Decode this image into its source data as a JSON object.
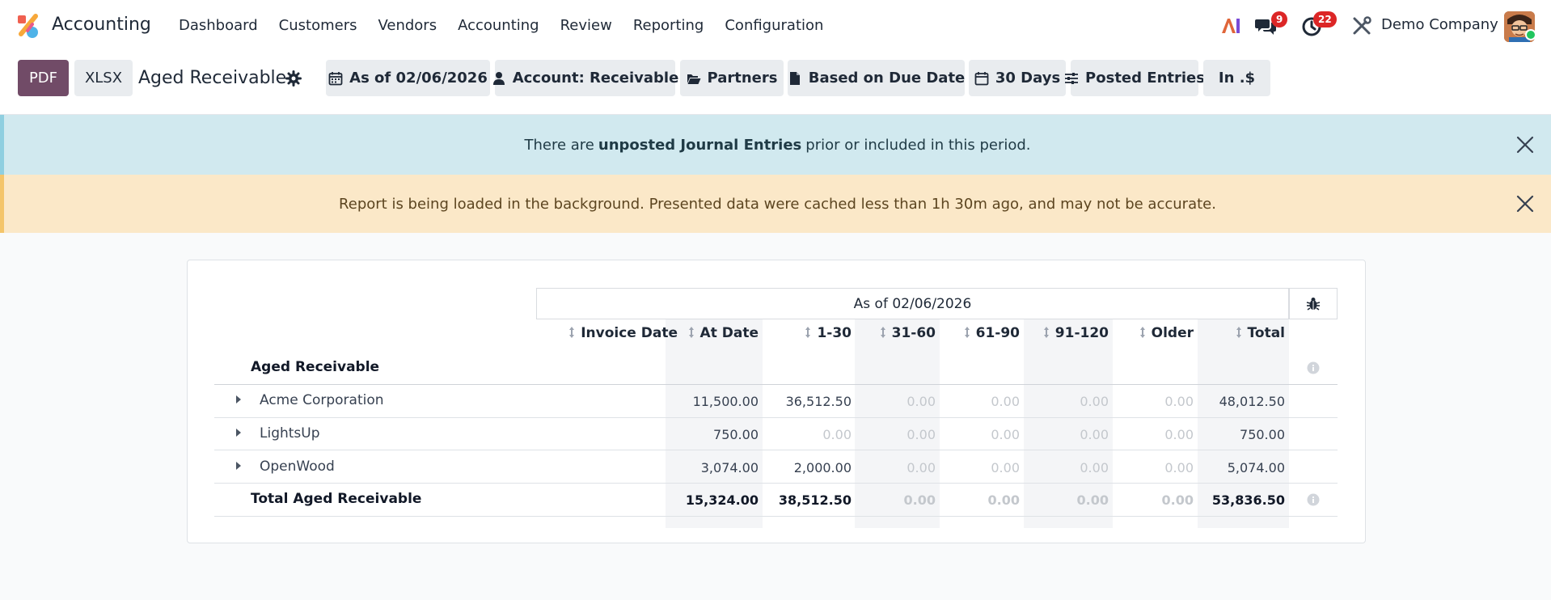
{
  "app": {
    "name": "Accounting"
  },
  "menu": [
    "Dashboard",
    "Customers",
    "Vendors",
    "Accounting",
    "Review",
    "Reporting",
    "Configuration"
  ],
  "nav": {
    "messages_count": "9",
    "activities_count": "22",
    "company": "Demo Company"
  },
  "control": {
    "pdf_label": "PDF",
    "xlsx_label": "XLSX",
    "title": "Aged Receivable",
    "filters": [
      {
        "icon": "calendar-icon",
        "label": "As of 02/06/2026"
      },
      {
        "icon": "user-icon",
        "label": "Account: Receivable"
      },
      {
        "icon": "folder-open-icon",
        "label": "Partners"
      },
      {
        "icon": "file-icon",
        "label": "Based on Due Date"
      },
      {
        "icon": "calendar-icon",
        "label": "30 Days"
      },
      {
        "icon": "sliders-icon",
        "label": "Posted Entries"
      },
      {
        "icon": "",
        "label": "In .$"
      }
    ]
  },
  "alerts": {
    "info": {
      "before": "There are",
      "bold": "unposted Journal Entries",
      "after": "prior or included in this period."
    },
    "warning": "Report is being loaded in the background. Presented data were cached less than 1h 30m ago, and may not be accurate."
  },
  "report": {
    "period": "As of 02/06/2026",
    "columns": [
      "Invoice Date",
      "At Date",
      "1-30",
      "31-60",
      "61-90",
      "91-120",
      "Older",
      "Total"
    ],
    "section_title": "Aged Receivable",
    "rows": [
      {
        "name": "Acme Corporation",
        "values": [
          "11,500.00",
          "36,512.50",
          "0.00",
          "0.00",
          "0.00",
          "0.00",
          "48,012.50"
        ]
      },
      {
        "name": "LightsUp",
        "values": [
          "750.00",
          "0.00",
          "0.00",
          "0.00",
          "0.00",
          "0.00",
          "750.00"
        ]
      },
      {
        "name": "OpenWood",
        "values": [
          "3,074.00",
          "2,000.00",
          "0.00",
          "0.00",
          "0.00",
          "0.00",
          "5,074.00"
        ]
      }
    ],
    "total": {
      "name": "Total Aged Receivable",
      "values": [
        "15,324.00",
        "38,512.50",
        "0.00",
        "0.00",
        "0.00",
        "0.00",
        "53,836.50"
      ]
    }
  }
}
